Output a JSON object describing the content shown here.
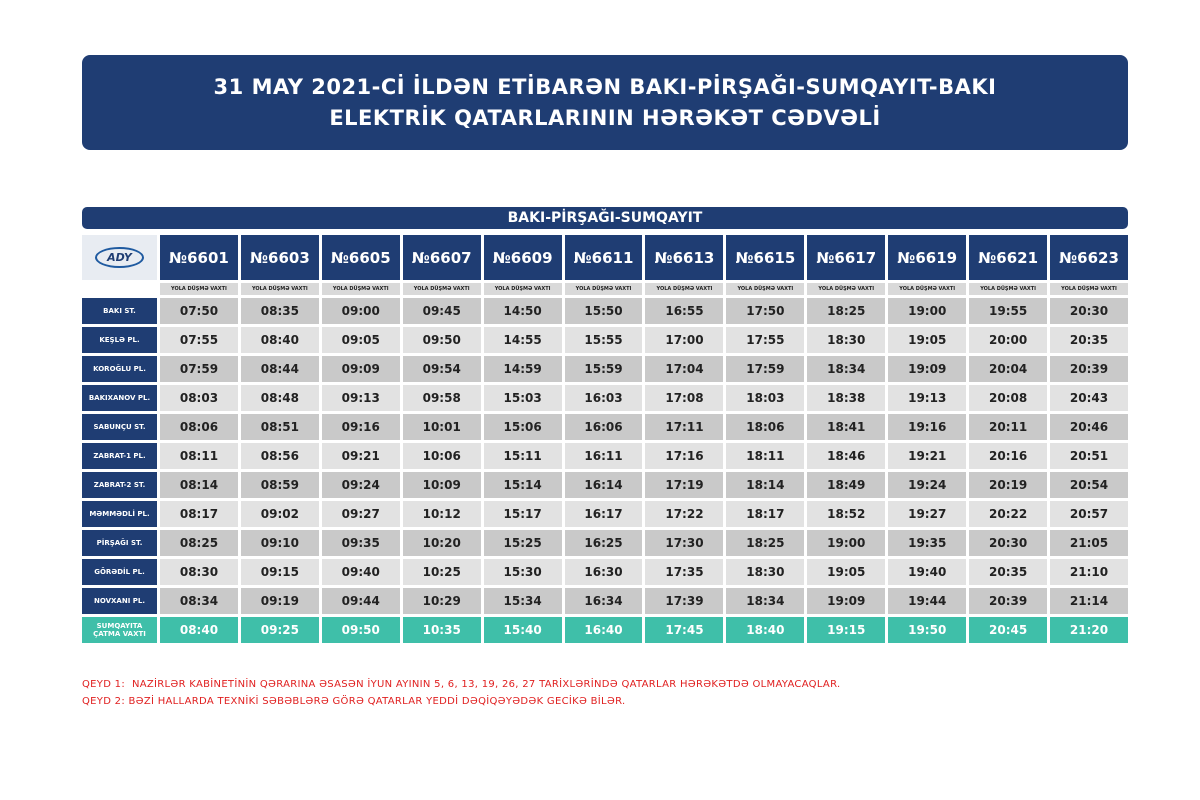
{
  "header": {
    "title": [
      "31 MAY 2021-Cİ İLDƏN ETİBARƏN BAKI-PİRŞAĞI-SUMQAYIT-BAKI",
      "ELEKTRİK QATARLARININ HƏRƏKƏT CƏDVƏLİ"
    ]
  },
  "table": {
    "section_title": "BAKI-PİRŞAĞI-SUMQAYIT",
    "logo": "ADY",
    "columns": [
      {
        "train": "№6601",
        "note": "YOLA DÜŞMƏ VAXTI"
      },
      {
        "train": "№6603",
        "note": "YOLA DÜŞMƏ VAXTI"
      },
      {
        "train": "№6605",
        "note": "YOLA DÜŞMƏ VAXTI"
      },
      {
        "train": "№6607",
        "note": "YOLA DÜŞMƏ VAXTI"
      },
      {
        "train": "№6609",
        "note": "YOLA DÜŞMƏ VAXTI"
      },
      {
        "train": "№6611",
        "note": "YOLA DÜŞMƏ VAXTI"
      },
      {
        "train": "№6613",
        "note": "YOLA DÜŞMƏ VAXTI"
      },
      {
        "train": "№6615",
        "note": "YOLA DÜŞMƏ VAXTI"
      },
      {
        "train": "№6617",
        "note": "YOLA DÜŞMƏ VAXTI"
      },
      {
        "train": "№6619",
        "note": "YOLA DÜŞMƏ VAXTI"
      },
      {
        "train": "№6621",
        "note": "YOLA DÜŞMƏ VAXTI"
      },
      {
        "train": "№6623",
        "note": "YOLA DÜŞMƏ VAXTI"
      }
    ],
    "rows": [
      {
        "station": "BAKI ST.",
        "times": [
          "07:50",
          "08:35",
          "09:00",
          "09:45",
          "14:50",
          "15:50",
          "16:55",
          "17:50",
          "18:25",
          "19:00",
          "19:55",
          "20:30"
        ]
      },
      {
        "station": "KEŞLƏ PL.",
        "times": [
          "07:55",
          "08:40",
          "09:05",
          "09:50",
          "14:55",
          "15:55",
          "17:00",
          "17:55",
          "18:30",
          "19:05",
          "20:00",
          "20:35"
        ]
      },
      {
        "station": "KOROĞLU PL.",
        "times": [
          "07:59",
          "08:44",
          "09:09",
          "09:54",
          "14:59",
          "15:59",
          "17:04",
          "17:59",
          "18:34",
          "19:09",
          "20:04",
          "20:39"
        ]
      },
      {
        "station": "BAKIXANOV PL.",
        "times": [
          "08:03",
          "08:48",
          "09:13",
          "09:58",
          "15:03",
          "16:03",
          "17:08",
          "18:03",
          "18:38",
          "19:13",
          "20:08",
          "20:43"
        ]
      },
      {
        "station": "SABUNÇU ST.",
        "times": [
          "08:06",
          "08:51",
          "09:16",
          "10:01",
          "15:06",
          "16:06",
          "17:11",
          "18:06",
          "18:41",
          "19:16",
          "20:11",
          "20:46"
        ]
      },
      {
        "station": "ZABRAT-1 PL.",
        "times": [
          "08:11",
          "08:56",
          "09:21",
          "10:06",
          "15:11",
          "16:11",
          "17:16",
          "18:11",
          "18:46",
          "19:21",
          "20:16",
          "20:51"
        ]
      },
      {
        "station": "ZABRAT-2 ST.",
        "times": [
          "08:14",
          "08:59",
          "09:24",
          "10:09",
          "15:14",
          "16:14",
          "17:19",
          "18:14",
          "18:49",
          "19:24",
          "20:19",
          "20:54"
        ]
      },
      {
        "station": "MƏMMƏDLİ PL.",
        "times": [
          "08:17",
          "09:02",
          "09:27",
          "10:12",
          "15:17",
          "16:17",
          "17:22",
          "18:17",
          "18:52",
          "19:27",
          "20:22",
          "20:57"
        ]
      },
      {
        "station": "PİRŞAĞI ST.",
        "times": [
          "08:25",
          "09:10",
          "09:35",
          "10:20",
          "15:25",
          "16:25",
          "17:30",
          "18:25",
          "19:00",
          "19:35",
          "20:30",
          "21:05"
        ]
      },
      {
        "station": "GÖRƏDİL PL.",
        "times": [
          "08:30",
          "09:15",
          "09:40",
          "10:25",
          "15:30",
          "16:30",
          "17:35",
          "18:30",
          "19:05",
          "19:40",
          "20:35",
          "21:10"
        ]
      },
      {
        "station": "NOVXANI PL.",
        "times": [
          "08:34",
          "09:19",
          "09:44",
          "10:29",
          "15:34",
          "16:34",
          "17:39",
          "18:34",
          "19:09",
          "19:44",
          "20:39",
          "21:14"
        ]
      },
      {
        "station": "SUMQAYITA ÇATMA VAXTI",
        "times": [
          "08:40",
          "09:25",
          "09:50",
          "10:35",
          "15:40",
          "16:40",
          "17:45",
          "18:40",
          "19:15",
          "19:50",
          "20:45",
          "21:20"
        ]
      }
    ]
  },
  "notes": [
    "QEYD 1:  NAZİRLƏR KABİNETİNİN QƏRARINA ƏSASƏN İYUN AYININ 5, 6, 13, 19, 26, 27 TARİXLƏRİNDƏ QATARLAR HƏRƏKƏTDƏ OLMAYACAQLAR.",
    "QEYD 2: BƏZİ HALLARDA TEXNİKİ SƏBƏBLƏRƏ GÖRƏ QATARLAR YEDDİ DƏQİQƏYƏDƏK GECİKƏ BİLƏR."
  ]
}
